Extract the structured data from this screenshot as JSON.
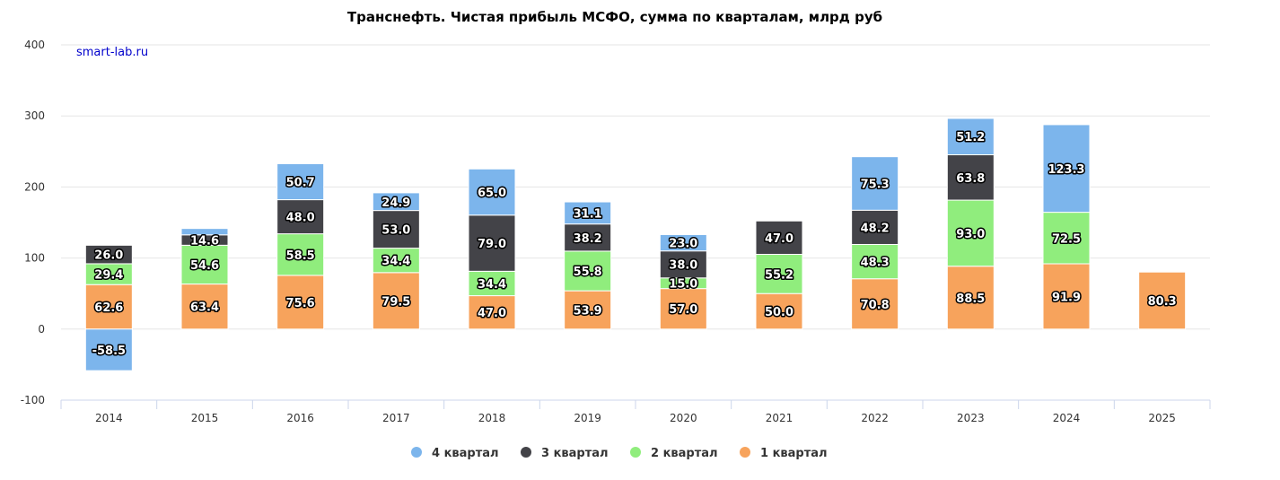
{
  "chart_data": {
    "type": "bar",
    "stacked": true,
    "title": "Транснефть. Чистая прибыль МСФО, сумма по кварталам, млрд руб",
    "source_label": "smart-lab.ru",
    "categories": [
      "2014",
      "2015",
      "2016",
      "2017",
      "2018",
      "2019",
      "2020",
      "2021",
      "2022",
      "2023",
      "2024",
      "2025"
    ],
    "ylim": [
      -100,
      400
    ],
    "yticks": [
      -100,
      0,
      100,
      200,
      300,
      400
    ],
    "grid": true,
    "legend_position": "bottom-center",
    "series": [
      {
        "name": "1 квартал",
        "color": "#f7a35c",
        "values": [
          62.6,
          63.4,
          75.6,
          79.5,
          47.0,
          53.9,
          57.0,
          50.0,
          70.8,
          88.5,
          91.9,
          80.3
        ]
      },
      {
        "name": "2 квартал",
        "color": "#90ed7d",
        "values": [
          29.4,
          54.6,
          58.5,
          34.4,
          34.4,
          55.8,
          15.0,
          55.2,
          48.3,
          93.0,
          72.5,
          null
        ]
      },
      {
        "name": "3 квартал",
        "color": "#434348",
        "values": [
          26.0,
          14.6,
          48.0,
          53.0,
          79.0,
          38.2,
          38.0,
          47.0,
          48.2,
          63.8,
          null,
          null
        ]
      },
      {
        "name": "4 квартал",
        "color": "#7cb5ec",
        "values": [
          -58.5,
          9.0,
          50.7,
          24.9,
          65.0,
          31.1,
          23.0,
          null,
          75.3,
          51.2,
          123.3,
          null
        ]
      }
    ],
    "label_hidden": {
      "4 квартал": [
        "2015"
      ]
    }
  }
}
